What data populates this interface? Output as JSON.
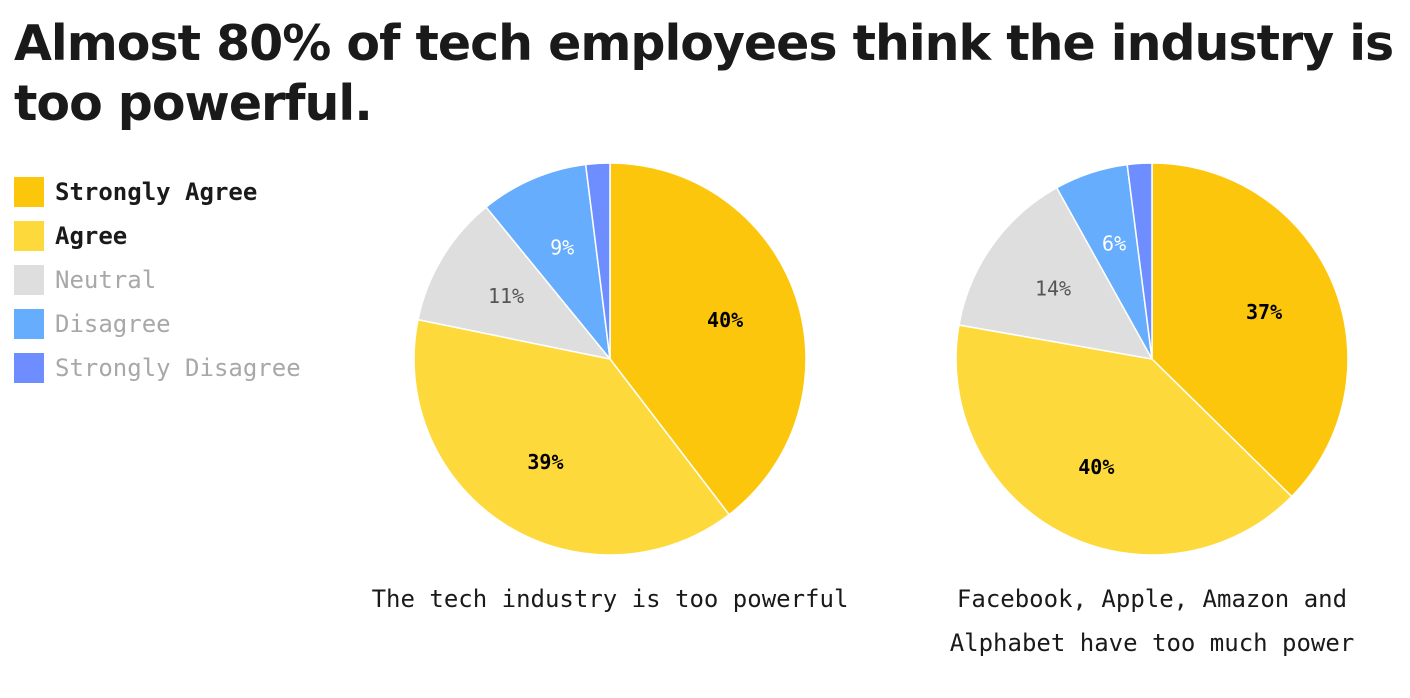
{
  "title": "Almost 80% of tech employees think the industry is too powerful.",
  "legend": [
    {
      "label": "Strongly Agree",
      "color": "#FCC60C",
      "active": true
    },
    {
      "label": "Agree",
      "color": "#FDD93C",
      "active": true
    },
    {
      "label": "Neutral",
      "color": "#DEDEDE",
      "active": false
    },
    {
      "label": "Disagree",
      "color": "#67ADFE",
      "active": false
    },
    {
      "label": "Strongly Disagree",
      "color": "#6E8EFF",
      "active": false
    }
  ],
  "chart_data": [
    {
      "type": "pie",
      "caption": "The tech industry is too powerful",
      "categories": [
        "Strongly Agree",
        "Agree",
        "Neutral",
        "Disagree",
        "Strongly Disagree"
      ],
      "values": [
        40,
        39,
        11,
        9,
        2
      ],
      "labels": [
        "40%",
        "39%",
        "11%",
        "9%",
        ""
      ]
    },
    {
      "type": "pie",
      "caption": "Facebook, Apple, Amazon and Alphabet have too much power",
      "categories": [
        "Strongly Agree",
        "Agree",
        "Neutral",
        "Disagree",
        "Strongly Disagree"
      ],
      "values": [
        37,
        40,
        14,
        6,
        2
      ],
      "labels": [
        "37%",
        "40%",
        "14%",
        "6%",
        ""
      ]
    }
  ]
}
